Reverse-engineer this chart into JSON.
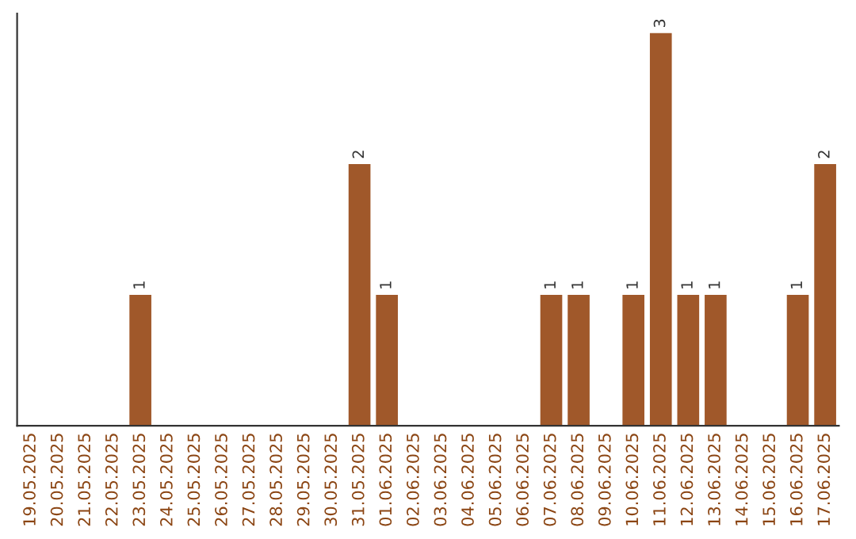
{
  "chart_data": {
    "type": "bar",
    "categories": [
      "19.05.2025",
      "20.05.2025",
      "21.05.2025",
      "22.05.2025",
      "23.05.2025",
      "24.05.2025",
      "25.05.2025",
      "26.05.2025",
      "27.05.2025",
      "28.05.2025",
      "29.05.2025",
      "30.05.2025",
      "31.05.2025",
      "01.06.2025",
      "02.06.2025",
      "03.06.2025",
      "04.06.2025",
      "05.06.2025",
      "06.06.2025",
      "07.06.2025",
      "08.06.2025",
      "09.06.2025",
      "10.06.2025",
      "11.06.2025",
      "12.06.2025",
      "13.06.2025",
      "14.06.2025",
      "15.06.2025",
      "16.06.2025",
      "17.06.2025"
    ],
    "values": [
      0,
      0,
      0,
      0,
      1,
      0,
      0,
      0,
      0,
      0,
      0,
      0,
      2,
      1,
      0,
      0,
      0,
      0,
      0,
      1,
      1,
      0,
      1,
      3,
      1,
      1,
      0,
      0,
      1,
      2
    ],
    "color": "#a0582a",
    "value_labels": [
      null,
      null,
      null,
      null,
      "1",
      null,
      null,
      null,
      null,
      null,
      null,
      null,
      "2",
      "1",
      null,
      null,
      null,
      null,
      null,
      "1",
      "1",
      null,
      "1",
      "3",
      "1",
      "1",
      null,
      null,
      "1",
      "2"
    ],
    "tick_labels": "x",
    "grid": false,
    "legend": false
  }
}
